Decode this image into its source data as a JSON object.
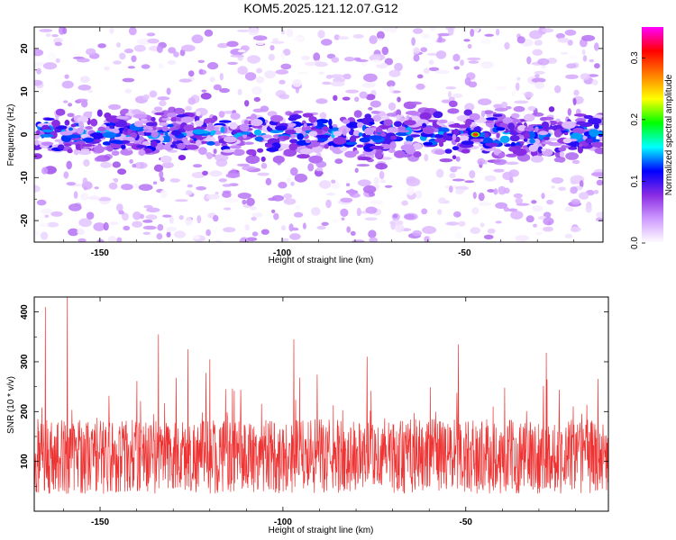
{
  "page_title": "KOM5.2025.121.12.07.G12",
  "chart_data": [
    {
      "type": "heatmap",
      "title": "KOM5.2025.121.12.07.G12",
      "xlabel": "Height of straight line (km)",
      "ylabel": "Frequency (Hz)",
      "xlim": [
        -168,
        -12
      ],
      "ylim": [
        -25,
        25
      ],
      "x_ticks": [
        -150,
        -100,
        -50
      ],
      "y_ticks": [
        -20,
        -10,
        0,
        10,
        20
      ],
      "colorbar": {
        "label": "Normalized spectral amplitude",
        "range": [
          0,
          0.35
        ],
        "ticks": [
          "0.0",
          "0.1",
          "0.2",
          "0.3"
        ],
        "colors": [
          "#ffffff",
          "#cf9cff",
          "#8a2be2",
          "#0000ff",
          "#00ffff",
          "#00ff00",
          "#ffff00",
          "#ff7f00",
          "#ff0000",
          "#ff00ff"
        ]
      },
      "band": {
        "center_hz": 0,
        "half_width_hz": 5,
        "typical_amplitude": 0.08,
        "peak_amplitude": 0.3,
        "peak_height_km": -47
      }
    },
    {
      "type": "line",
      "xlabel": "Height of straight line (km)",
      "ylabel": "SNR (10 * v/v)",
      "xlim": [
        -168,
        -11
      ],
      "ylim": [
        0,
        430
      ],
      "x_ticks": [
        -150,
        -100,
        -50
      ],
      "y_ticks": [
        100,
        200,
        300,
        400
      ],
      "color": "#ee3333",
      "baseline": 110,
      "peaks": [
        {
          "x": -165,
          "y": 410
        },
        {
          "x": -159,
          "y": 430
        },
        {
          "x": -134,
          "y": 355
        },
        {
          "x": -126,
          "y": 325
        },
        {
          "x": -120,
          "y": 305
        },
        {
          "x": -97,
          "y": 345
        },
        {
          "x": -77,
          "y": 310
        },
        {
          "x": -52,
          "y": 335
        },
        {
          "x": -28,
          "y": 318
        }
      ]
    }
  ]
}
